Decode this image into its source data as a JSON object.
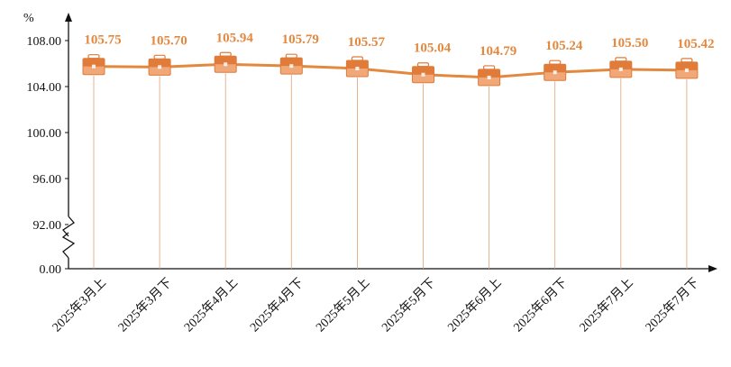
{
  "chart_data": {
    "type": "line",
    "unit": "%",
    "categories": [
      "2025年3月上",
      "2025年3月下",
      "2025年4月上",
      "2025年4月下",
      "2025年5月上",
      "2025年5月下",
      "2025年6月上",
      "2025年6月下",
      "2025年7月上",
      "2025年7月下"
    ],
    "series": [
      {
        "values": [
          105.75,
          105.7,
          105.94,
          105.79,
          105.57,
          105.04,
          104.79,
          105.24,
          105.5,
          105.42
        ]
      }
    ],
    "data_labels": [
      "105.75",
      "105.70",
      "105.94",
      "105.79",
      "105.57",
      "105.04",
      "104.79",
      "105.24",
      "105.50",
      "105.42"
    ],
    "y_ticks": [
      {
        "value": 0,
        "label": "0.00"
      },
      {
        "value": 92,
        "label": "92.00"
      },
      {
        "value": 96,
        "label": "96.00"
      },
      {
        "value": 100,
        "label": "100.00"
      },
      {
        "value": 104,
        "label": "104.00"
      },
      {
        "value": 108,
        "label": "108.00"
      }
    ],
    "axis_break": "between 0.00 and 92.00",
    "ylim": [
      92,
      108
    ],
    "grid": false,
    "legend": "none",
    "colors": {
      "line": "#e3883f",
      "label": "#e3883f",
      "marker_fill": "#e07b39",
      "marker_light": "#f0a878",
      "axis": "#111111",
      "drop_line": "#e3a070"
    },
    "marker_icon": "briefcase-icon"
  }
}
